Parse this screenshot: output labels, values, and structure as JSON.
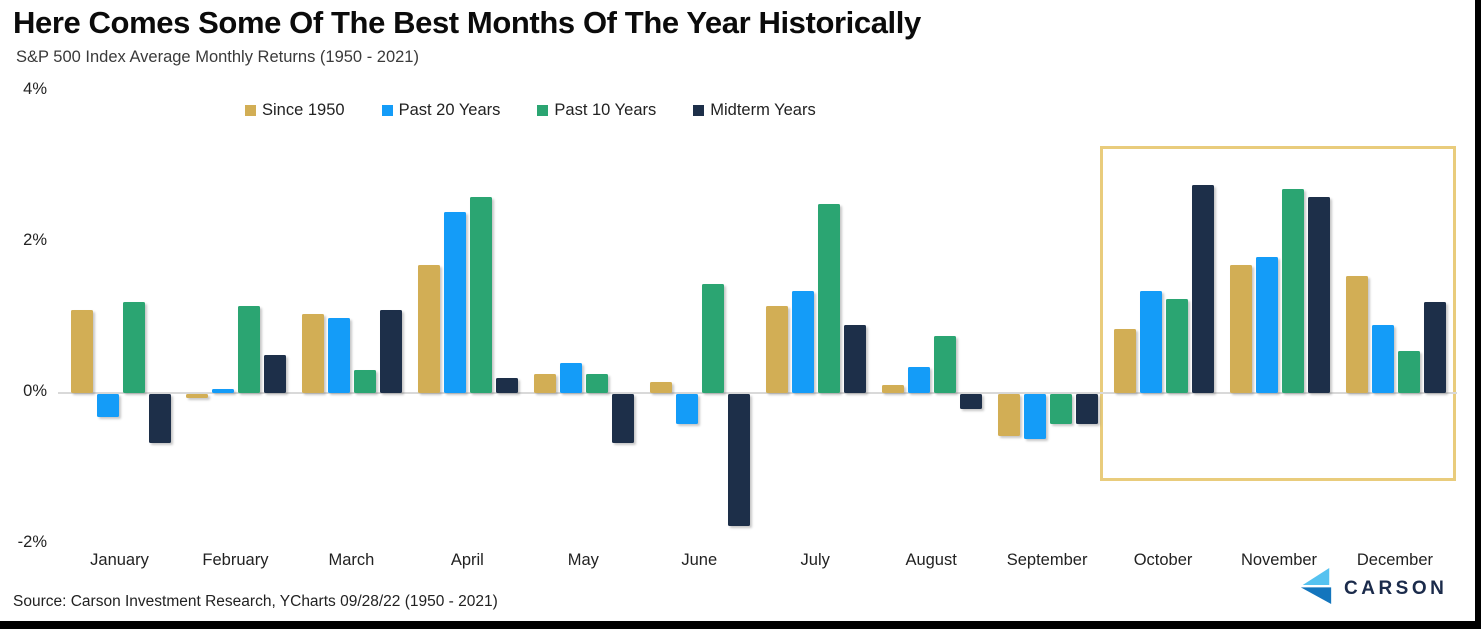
{
  "header": {
    "title": "Here Comes Some Of The Best Months Of The Year Historically",
    "subtitle": "S&P 500 Index Average Monthly Returns (1950 - 2021)"
  },
  "chart_data": {
    "type": "bar",
    "categories": [
      "January",
      "February",
      "March",
      "April",
      "May",
      "June",
      "July",
      "August",
      "September",
      "October",
      "November",
      "December"
    ],
    "series": [
      {
        "name": "Since 1950",
        "color": "#D2AE55",
        "values": [
          1.1,
          -0.05,
          1.05,
          1.7,
          0.25,
          0.15,
          1.15,
          0.1,
          -0.55,
          0.85,
          1.7,
          1.55
        ]
      },
      {
        "name": "Past 20 Years",
        "color": "#149CF8",
        "values": [
          -0.3,
          0.05,
          1.0,
          2.4,
          0.4,
          -0.4,
          1.35,
          0.35,
          -0.6,
          1.35,
          1.8,
          0.9
        ]
      },
      {
        "name": "Past 10 Years",
        "color": "#2BA572",
        "values": [
          1.2,
          1.15,
          0.3,
          2.6,
          0.25,
          1.45,
          2.5,
          0.75,
          -0.4,
          1.25,
          2.7,
          0.55
        ]
      },
      {
        "name": "Midterm Years",
        "color": "#1D2F49",
        "values": [
          -0.65,
          0.5,
          1.1,
          0.2,
          -0.65,
          -1.75,
          0.9,
          -0.2,
          -0.4,
          2.75,
          2.6,
          1.2
        ]
      }
    ],
    "yticks": [
      {
        "value": 4,
        "label": "4%"
      },
      {
        "value": 2,
        "label": "2%"
      },
      {
        "value": 0,
        "label": "0%"
      },
      {
        "value": -2,
        "label": "-2%"
      }
    ],
    "ylim": [
      -2.4,
      4
    ],
    "grid": false,
    "legend_position": "top",
    "highlight": {
      "months": [
        "October",
        "November",
        "December"
      ],
      "border_color": "#E9CC7C"
    }
  },
  "footer": {
    "source": "Source: Carson Investment Research, YCharts 09/28/22 (1950 - 2021)",
    "brand": "CARSON",
    "brand_icon": "carson-chevron-logo",
    "brand_colors": {
      "light": "#55C2F0",
      "dark": "#1375BD",
      "text": "#1B2B4B"
    }
  }
}
